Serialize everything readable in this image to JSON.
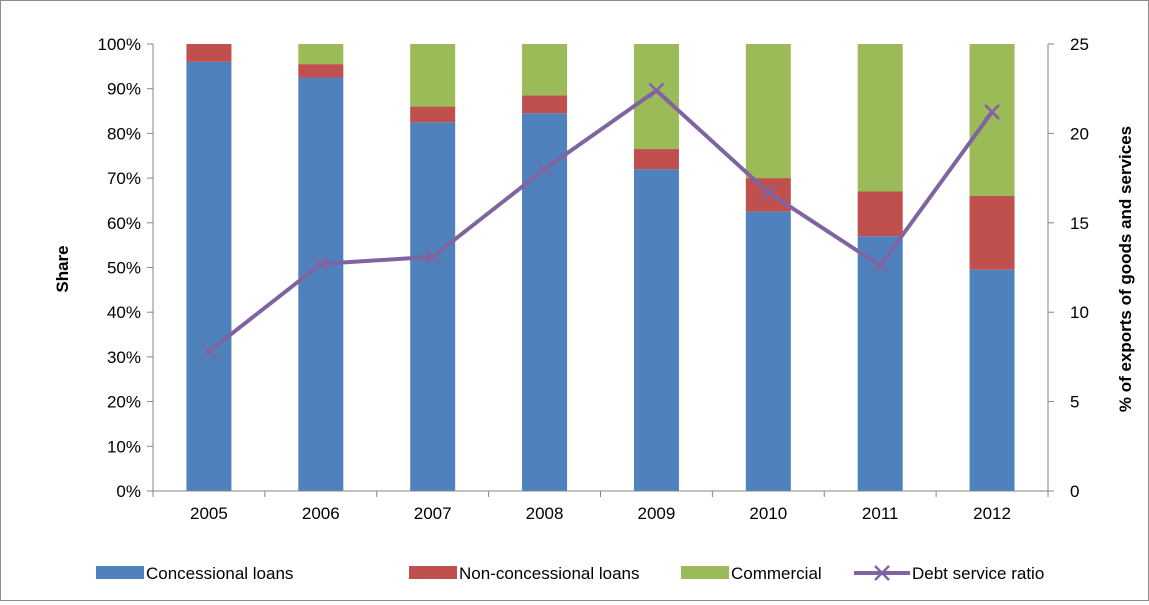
{
  "chart_data": {
    "type": "bar",
    "stacked": true,
    "categories": [
      "2005",
      "2006",
      "2007",
      "2008",
      "2009",
      "2010",
      "2011",
      "2012"
    ],
    "series": [
      {
        "name": "Concessional loans",
        "type": "bar",
        "axis": "left",
        "color": "#4f81bd",
        "values": [
          96,
          92.5,
          82.5,
          84.5,
          72,
          62.5,
          57,
          49.5
        ]
      },
      {
        "name": "Non-concessional loans",
        "type": "bar",
        "axis": "left",
        "color": "#c0504d",
        "values": [
          4,
          3,
          3.5,
          4,
          4.5,
          7.5,
          10,
          16.5
        ]
      },
      {
        "name": "Commercial",
        "type": "bar",
        "axis": "left",
        "color": "#9bbb59",
        "values": [
          0,
          4.5,
          14,
          11.5,
          23.5,
          30,
          33,
          34
        ]
      },
      {
        "name": "Debt service ratio",
        "type": "line",
        "axis": "right",
        "color": "#8064a2",
        "marker": "x",
        "values": [
          7.8,
          12.7,
          13.1,
          18.0,
          22.4,
          16.7,
          12.6,
          21.2
        ]
      }
    ],
    "left_axis": {
      "label": "Share",
      "ylim": [
        0,
        100
      ],
      "ticks": [
        "0%",
        "10%",
        "20%",
        "30%",
        "40%",
        "50%",
        "60%",
        "70%",
        "80%",
        "90%",
        "100%"
      ]
    },
    "right_axis": {
      "label": "% of exports of goods and services",
      "ylim": [
        0,
        25
      ],
      "ticks": [
        "0",
        "5",
        "10",
        "15",
        "20",
        "25"
      ]
    },
    "title": "",
    "xlabel": "",
    "legend": "bottom",
    "grid": false
  }
}
